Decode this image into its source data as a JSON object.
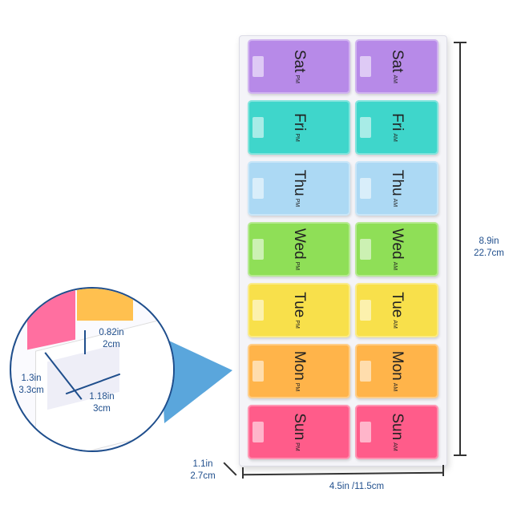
{
  "organizer": {
    "rows": [
      {
        "day": "Sat",
        "color": "#b78ae8"
      },
      {
        "day": "Fri",
        "color": "#3fd6cb"
      },
      {
        "day": "Thu",
        "color": "#acd9f4"
      },
      {
        "day": "Wed",
        "color": "#8fdf57"
      },
      {
        "day": "Tue",
        "color": "#f8e04b"
      },
      {
        "day": "Mon",
        "color": "#ffb44a"
      },
      {
        "day": "Sun",
        "color": "#ff5c8a"
      }
    ],
    "left_period": "PM",
    "right_period": "AM"
  },
  "dimensions": {
    "height_in": "8.9in",
    "height_cm": "22.7cm",
    "width": "4.5in /11.5cm",
    "depth_in": "1.1in",
    "depth_cm": "2.7cm"
  },
  "inset": {
    "compartment_depth_in": "0.82in",
    "compartment_depth_cm": "2cm",
    "compartment_length_in": "1.3in",
    "compartment_length_cm": "3.3cm",
    "compartment_width_in": "1.18in",
    "compartment_width_cm": "3cm",
    "callout_color": "#5aa6dc"
  }
}
